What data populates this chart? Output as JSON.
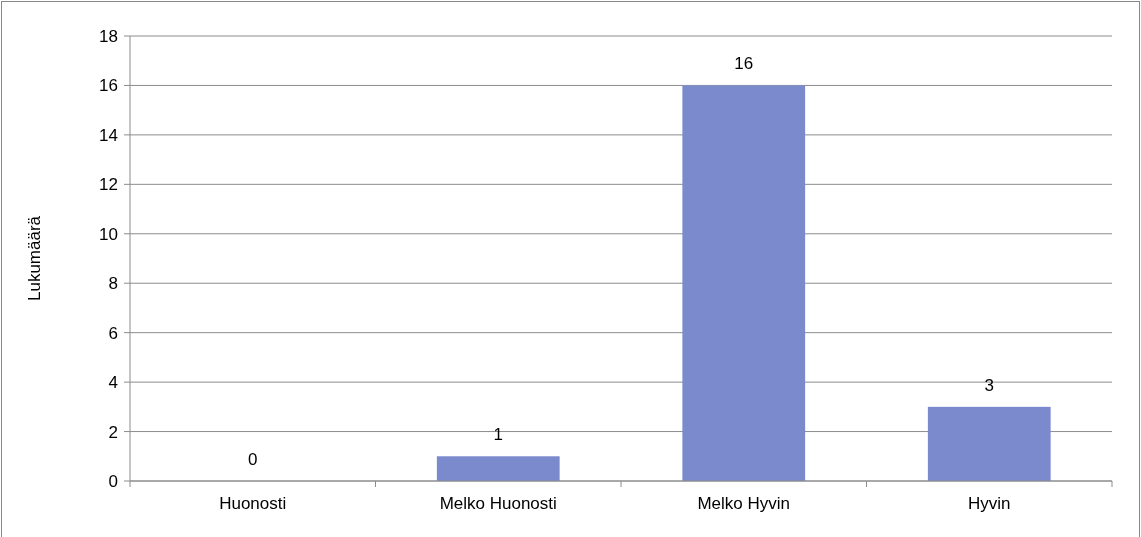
{
  "chart_data": {
    "type": "bar",
    "ylabel": "Lukumäärä",
    "categories": [
      "Huonosti",
      "Melko Huonosti",
      "Melko Hyvin",
      "Hyvin"
    ],
    "values": [
      0,
      1,
      16,
      3
    ],
    "color": "#7b8acd",
    "ylim": [
      0,
      18
    ],
    "yticks": [
      0,
      2,
      4,
      6,
      8,
      10,
      12,
      14,
      16,
      18
    ],
    "grid": "y",
    "data_labels": true
  }
}
